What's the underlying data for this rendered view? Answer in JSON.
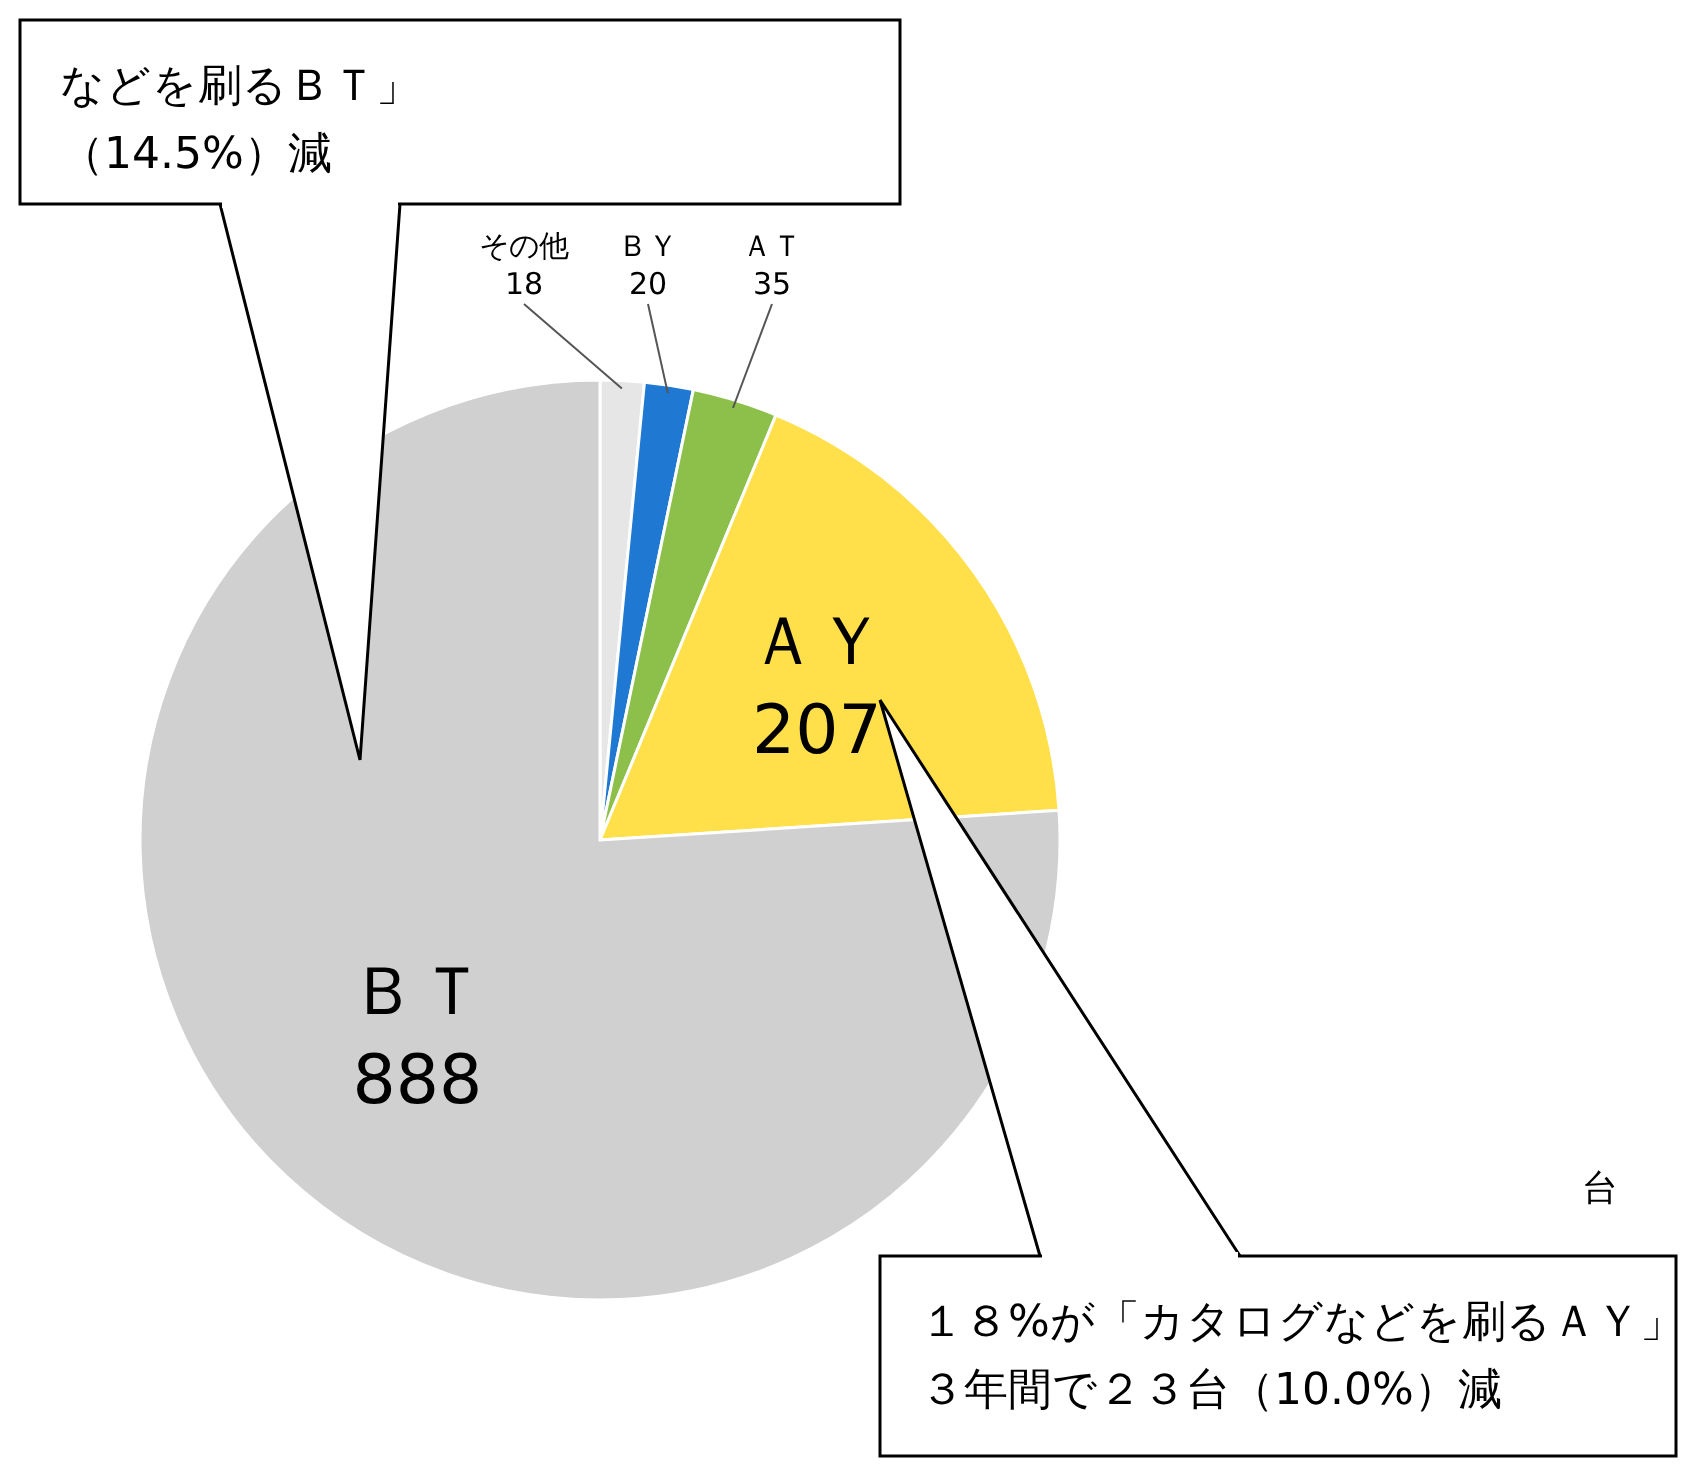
{
  "chart_data": {
    "type": "pie",
    "categories": [
      "その他",
      "ＢＹ",
      "ＡＴ",
      "ＡＹ",
      "ＢＴ"
    ],
    "values": [
      18,
      20,
      35,
      207,
      888
    ],
    "colors": [
      "#e6e6e6",
      "#1f78d1",
      "#8cc04a",
      "#ffe04a",
      "#d0d0d0"
    ],
    "data_labels": true,
    "annotations": [
      "などを刷るＢＴ」",
      "（14.5%）減",
      "１８%が「カタログなどを刷るＡＹ」",
      "３年間で２３台（10.0%）減",
      "台"
    ]
  }
}
